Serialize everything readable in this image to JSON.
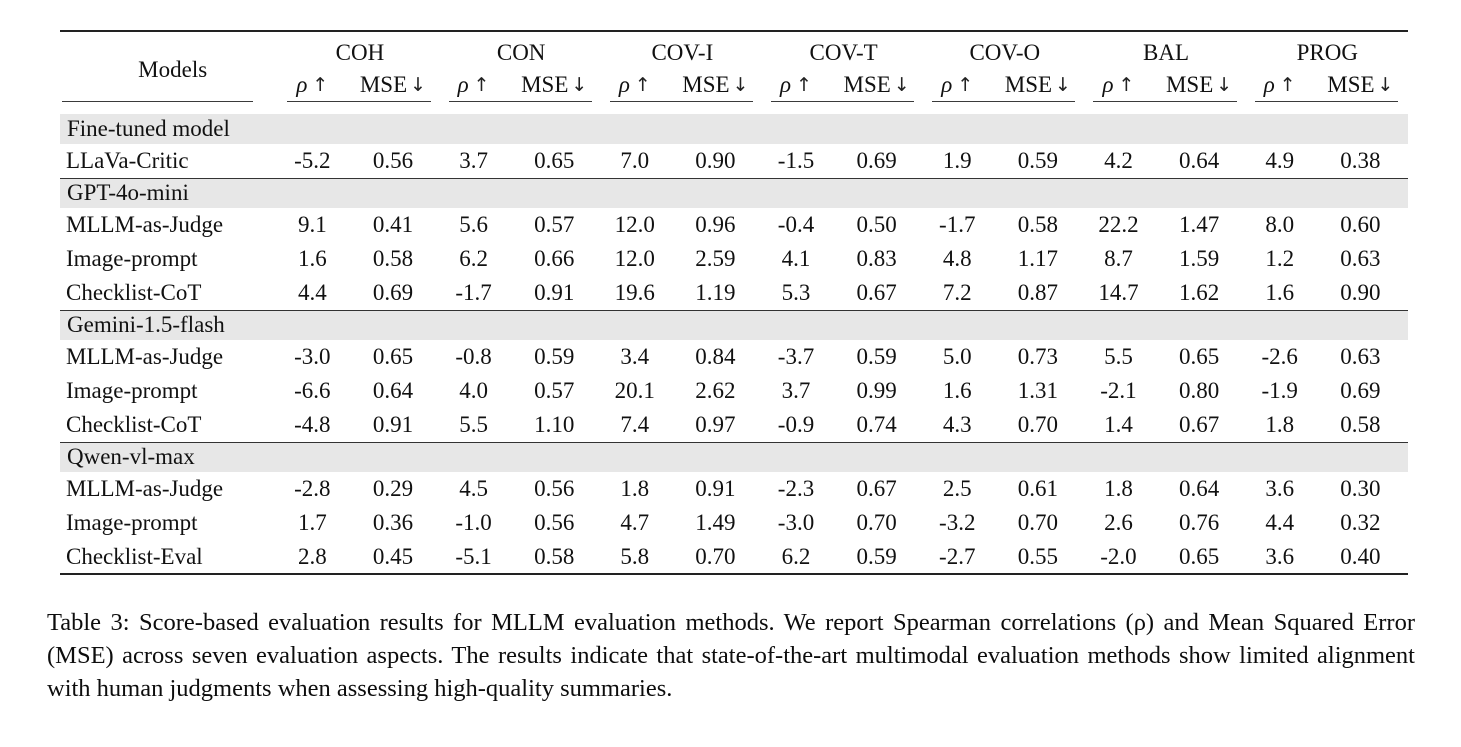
{
  "table": {
    "header": {
      "models_label": "Models",
      "groups": [
        "COH",
        "CON",
        "COV-I",
        "COV-T",
        "COV-O",
        "BAL",
        "PROG"
      ],
      "rho_label": "ρ",
      "rho_arrow": "↑",
      "mse_label": "MSE",
      "mse_arrow": "↓"
    },
    "sections": [
      {
        "name": "Fine-tuned model",
        "rows": [
          {
            "model": "LLaVa-Critic",
            "values": [
              "-5.2",
              "0.56",
              "3.7",
              "0.65",
              "7.0",
              "0.90",
              "-1.5",
              "0.69",
              "1.9",
              "0.59",
              "4.2",
              "0.64",
              "4.9",
              "0.38"
            ]
          }
        ]
      },
      {
        "name": "GPT-4o-mini",
        "rows": [
          {
            "model": "MLLM-as-Judge",
            "values": [
              "9.1",
              "0.41",
              "5.6",
              "0.57",
              "12.0",
              "0.96",
              "-0.4",
              "0.50",
              "-1.7",
              "0.58",
              "22.2",
              "1.47",
              "8.0",
              "0.60"
            ]
          },
          {
            "model": "Image-prompt",
            "values": [
              "1.6",
              "0.58",
              "6.2",
              "0.66",
              "12.0",
              "2.59",
              "4.1",
              "0.83",
              "4.8",
              "1.17",
              "8.7",
              "1.59",
              "1.2",
              "0.63"
            ]
          },
          {
            "model": "Checklist-CoT",
            "values": [
              "4.4",
              "0.69",
              "-1.7",
              "0.91",
              "19.6",
              "1.19",
              "5.3",
              "0.67",
              "7.2",
              "0.87",
              "14.7",
              "1.62",
              "1.6",
              "0.90"
            ]
          }
        ]
      },
      {
        "name": "Gemini-1.5-flash",
        "rows": [
          {
            "model": "MLLM-as-Judge",
            "values": [
              "-3.0",
              "0.65",
              "-0.8",
              "0.59",
              "3.4",
              "0.84",
              "-3.7",
              "0.59",
              "5.0",
              "0.73",
              "5.5",
              "0.65",
              "-2.6",
              "0.63"
            ]
          },
          {
            "model": "Image-prompt",
            "values": [
              "-6.6",
              "0.64",
              "4.0",
              "0.57",
              "20.1",
              "2.62",
              "3.7",
              "0.99",
              "1.6",
              "1.31",
              "-2.1",
              "0.80",
              "-1.9",
              "0.69"
            ]
          },
          {
            "model": "Checklist-CoT",
            "values": [
              "-4.8",
              "0.91",
              "5.5",
              "1.10",
              "7.4",
              "0.97",
              "-0.9",
              "0.74",
              "4.3",
              "0.70",
              "1.4",
              "0.67",
              "1.8",
              "0.58"
            ]
          }
        ]
      },
      {
        "name": "Qwen-vl-max",
        "rows": [
          {
            "model": "MLLM-as-Judge",
            "values": [
              "-2.8",
              "0.29",
              "4.5",
              "0.56",
              "1.8",
              "0.91",
              "-2.3",
              "0.67",
              "2.5",
              "0.61",
              "1.8",
              "0.64",
              "3.6",
              "0.30"
            ]
          },
          {
            "model": "Image-prompt",
            "values": [
              "1.7",
              "0.36",
              "-1.0",
              "0.56",
              "4.7",
              "1.49",
              "-3.0",
              "0.70",
              "-3.2",
              "0.70",
              "2.6",
              "0.76",
              "4.4",
              "0.32"
            ]
          },
          {
            "model": "Checklist-Eval",
            "values": [
              "2.8",
              "0.45",
              "-5.1",
              "0.58",
              "5.8",
              "0.70",
              "6.2",
              "0.59",
              "-2.7",
              "0.55",
              "-2.0",
              "0.65",
              "3.6",
              "0.40"
            ]
          }
        ]
      }
    ]
  },
  "caption": "Table 3: Score-based evaluation results for MLLM evaluation methods. We report Spearman correlations (ρ) and Mean Squared Error (MSE) across seven evaluation aspects. The results indicate that state-of-the-art multimodal evaluation methods show limited alignment with human judgments when assessing high-quality summaries.",
  "colors": {
    "section_band": "#e7e7e7",
    "rule": "#222222",
    "text": "#111111",
    "background": "#ffffff"
  }
}
